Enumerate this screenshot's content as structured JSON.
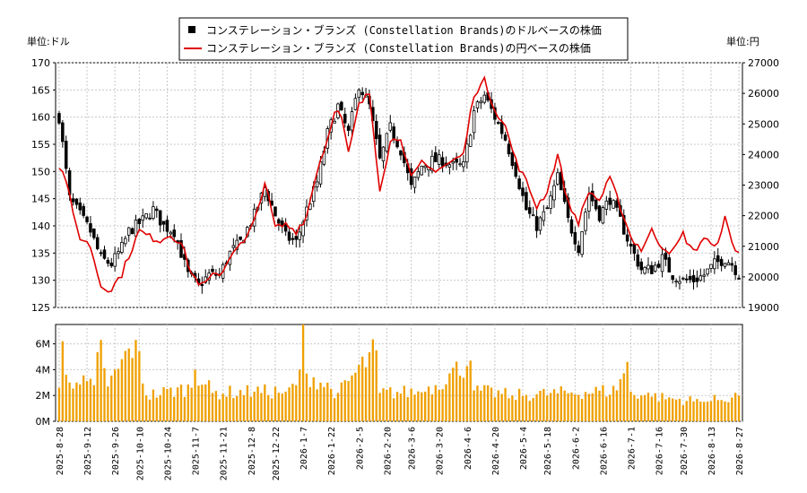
{
  "chart_data": {
    "type": "candlestick+line+bar",
    "legend": {
      "usd_label": "コンステレーション・ブランズ (Constellation Brands)のドルベースの株価",
      "jpy_label": "コンステレーション・ブランズ (Constellation Brands)の円ベースの株価",
      "usd_color": "#000000",
      "jpy_color": "#e00000",
      "placement": "top-center"
    },
    "left_axis_title": "単位:ドル",
    "right_axis_title": "単位:円",
    "usd_axis": {
      "min": 125,
      "max": 170,
      "ticks": [
        "125",
        "130",
        "135",
        "140",
        "145",
        "150",
        "155",
        "160",
        "165",
        "170"
      ]
    },
    "jpy_axis": {
      "min": 19000,
      "max": 27000,
      "ticks": [
        "19000",
        "20000",
        "21000",
        "22000",
        "23000",
        "24000",
        "25000",
        "26000",
        "27000"
      ]
    },
    "volume_axis": {
      "min": 0,
      "max": 7.5,
      "ticks": [
        "0M",
        "2M",
        "4M",
        "6M"
      ]
    },
    "x_labels": [
      "2025-8-28",
      "2025-9-12",
      "2025-9-26",
      "2025-10-10",
      "2025-10-24",
      "2025-11-7",
      "2025-11-21",
      "2025-12-8",
      "2025-12-22",
      "2026-1-7",
      "2026-1-22",
      "2026-2-5",
      "2026-2-20",
      "2026-3-6",
      "2026-3-20",
      "2026-4-6",
      "2026-4-20",
      "2026-5-4",
      "2026-5-18",
      "2026-6-2",
      "2026-6-16",
      "2026-7-1",
      "2026-7-16",
      "2026-7-30",
      "2026-8-13",
      "2026-8-27"
    ],
    "usd_close_anchors": [
      [
        0,
        160.0
      ],
      [
        3,
        145
      ],
      [
        6,
        142
      ],
      [
        9,
        139
      ],
      [
        12,
        134
      ],
      [
        15,
        133
      ],
      [
        18,
        136
      ],
      [
        20,
        139
      ],
      [
        24,
        141
      ],
      [
        27,
        143
      ],
      [
        30,
        140
      ],
      [
        33,
        139
      ],
      [
        37,
        131
      ],
      [
        40,
        129
      ],
      [
        43,
        131
      ],
      [
        46,
        131
      ],
      [
        49,
        135
      ],
      [
        52,
        137
      ],
      [
        56,
        142
      ],
      [
        59,
        147
      ],
      [
        62,
        142
      ],
      [
        65,
        138
      ],
      [
        68,
        137
      ],
      [
        71,
        143
      ],
      [
        74,
        148
      ],
      [
        77,
        157
      ],
      [
        80,
        162
      ],
      [
        83,
        157
      ],
      [
        86,
        166
      ],
      [
        89,
        162
      ],
      [
        92,
        152
      ],
      [
        95,
        158
      ],
      [
        98,
        154
      ],
      [
        101,
        147
      ],
      [
        104,
        151
      ],
      [
        107,
        152
      ],
      [
        110,
        152
      ],
      [
        113,
        151
      ],
      [
        116,
        151
      ],
      [
        119,
        161
      ],
      [
        122,
        164
      ],
      [
        125,
        160
      ],
      [
        128,
        156
      ],
      [
        131,
        150
      ],
      [
        134,
        143
      ],
      [
        137,
        140
      ],
      [
        140,
        143
      ],
      [
        143,
        149
      ],
      [
        146,
        141
      ],
      [
        149,
        136
      ],
      [
        152,
        146
      ],
      [
        155,
        142
      ],
      [
        158,
        145
      ],
      [
        161,
        141
      ],
      [
        164,
        136
      ],
      [
        167,
        132
      ],
      [
        170,
        132
      ],
      [
        173,
        134
      ],
      [
        176,
        131
      ],
      [
        179,
        130
      ],
      [
        182,
        130
      ],
      [
        185,
        131
      ],
      [
        188,
        133
      ],
      [
        191,
        134
      ],
      [
        193,
        133
      ],
      [
        195,
        131
      ]
    ],
    "jpy_close_anchors": [
      [
        0,
        23600
      ],
      [
        2,
        23200
      ],
      [
        4,
        22000
      ],
      [
        6,
        21300
      ],
      [
        9,
        21000
      ],
      [
        12,
        19700
      ],
      [
        15,
        19600
      ],
      [
        18,
        20100
      ],
      [
        20,
        20700
      ],
      [
        23,
        21500
      ],
      [
        26,
        21300
      ],
      [
        29,
        21200
      ],
      [
        32,
        21400
      ],
      [
        35,
        21100
      ],
      [
        38,
        20100
      ],
      [
        41,
        19700
      ],
      [
        44,
        20000
      ],
      [
        47,
        20200
      ],
      [
        50,
        20900
      ],
      [
        53,
        21100
      ],
      [
        56,
        21800
      ],
      [
        59,
        23100
      ],
      [
        62,
        21600
      ],
      [
        65,
        21700
      ],
      [
        68,
        21500
      ],
      [
        71,
        22000
      ],
      [
        74,
        23500
      ],
      [
        77,
        24500
      ],
      [
        79,
        25500
      ],
      [
        81,
        25200
      ],
      [
        83,
        24000
      ],
      [
        86,
        25600
      ],
      [
        89,
        26000
      ],
      [
        92,
        22900
      ],
      [
        95,
        24400
      ],
      [
        98,
        24600
      ],
      [
        101,
        23200
      ],
      [
        104,
        23700
      ],
      [
        107,
        23500
      ],
      [
        110,
        23600
      ],
      [
        113,
        23800
      ],
      [
        116,
        24000
      ],
      [
        119,
        26000
      ],
      [
        122,
        26400
      ],
      [
        125,
        25500
      ],
      [
        128,
        24900
      ],
      [
        131,
        23800
      ],
      [
        134,
        23100
      ],
      [
        137,
        22300
      ],
      [
        140,
        22800
      ],
      [
        143,
        24000
      ],
      [
        146,
        22400
      ],
      [
        149,
        21800
      ],
      [
        152,
        22800
      ],
      [
        155,
        22500
      ],
      [
        158,
        23200
      ],
      [
        161,
        22300
      ],
      [
        164,
        21300
      ],
      [
        167,
        20900
      ],
      [
        170,
        21500
      ],
      [
        173,
        21000
      ],
      [
        176,
        20800
      ],
      [
        179,
        21400
      ],
      [
        182,
        20800
      ],
      [
        185,
        21300
      ],
      [
        188,
        20900
      ],
      [
        191,
        21900
      ],
      [
        193,
        21100
      ],
      [
        195,
        20800
      ]
    ],
    "volume_anchors": [
      [
        0,
        2.6
      ],
      [
        1,
        6.2
      ],
      [
        2,
        3.6
      ],
      [
        5,
        3.0
      ],
      [
        10,
        2.8
      ],
      [
        12,
        6.3
      ],
      [
        14,
        2.7
      ],
      [
        22,
        6.3
      ],
      [
        25,
        2.0
      ],
      [
        38,
        2.6
      ],
      [
        39,
        4.0
      ],
      [
        44,
        2.2
      ],
      [
        56,
        2.3
      ],
      [
        65,
        2.3
      ],
      [
        68,
        2.8
      ],
      [
        69,
        4.0
      ],
      [
        70,
        7.5
      ],
      [
        71,
        3.7
      ],
      [
        80,
        2.2
      ],
      [
        91,
        5.5
      ],
      [
        92,
        2.2
      ],
      [
        105,
        2.3
      ],
      [
        118,
        4.7
      ],
      [
        119,
        2.4
      ],
      [
        130,
        2.0
      ],
      [
        160,
        2.4
      ],
      [
        163,
        4.6
      ],
      [
        164,
        2.3
      ],
      [
        170,
        1.9
      ],
      [
        185,
        1.5
      ],
      [
        195,
        2.0
      ]
    ],
    "n_days": 196
  }
}
